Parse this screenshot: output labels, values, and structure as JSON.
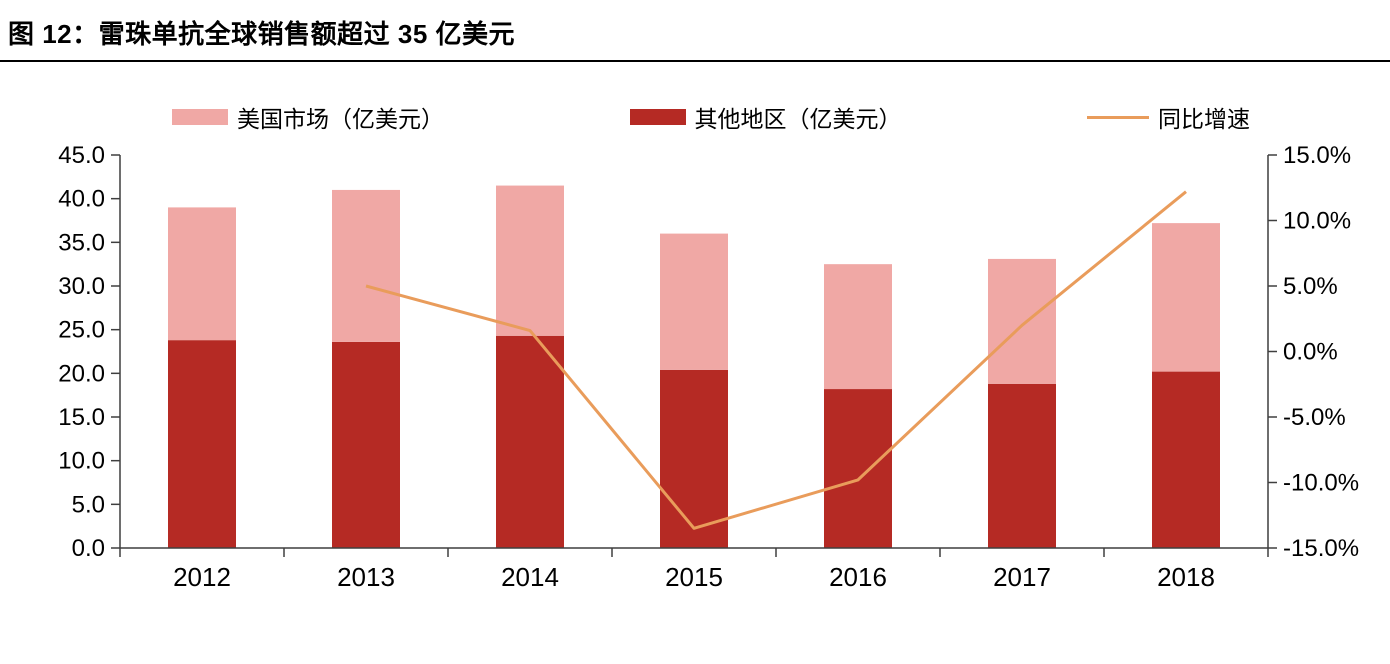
{
  "title": "图 12：雷珠单抗全球销售额超过 35 亿美元",
  "colors": {
    "us_market": "#f0a8a5",
    "other_region": "#b52a24",
    "growth_line": "#e99c5b",
    "axis": "#3f3f3f",
    "text": "#000000",
    "divider": "#000000"
  },
  "legend": {
    "items": [
      {
        "label": "美国市场（亿美元）",
        "type": "bar",
        "color_key": "us_market"
      },
      {
        "label": "其他地区（亿美元）",
        "type": "bar",
        "color_key": "other_region"
      },
      {
        "label": "同比增速",
        "type": "line",
        "color_key": "growth_line"
      }
    ]
  },
  "chart_data": {
    "type": "bar",
    "subtype": "stacked-bar-with-line-dual-axis",
    "title": "图 12：雷珠单抗全球销售额超过 35 亿美元",
    "categories": [
      "2012",
      "2013",
      "2014",
      "2015",
      "2016",
      "2017",
      "2018"
    ],
    "series": [
      {
        "name": "其他地区（亿美元）",
        "type": "bar",
        "axis": "left",
        "stack_order": 0,
        "color_key": "other_region",
        "values": [
          23.8,
          23.6,
          24.3,
          20.4,
          18.2,
          18.8,
          20.2
        ]
      },
      {
        "name": "美国市场（亿美元）",
        "type": "bar",
        "axis": "left",
        "stack_order": 1,
        "color_key": "us_market",
        "values": [
          15.2,
          17.4,
          17.2,
          15.6,
          14.3,
          14.3,
          17.0
        ]
      },
      {
        "name": "同比增速",
        "type": "line",
        "axis": "right",
        "color_key": "growth_line",
        "values": [
          null,
          5.0,
          1.6,
          -13.5,
          -9.8,
          2.0,
          12.2
        ]
      }
    ],
    "stacked_totals": [
      39.0,
      41.0,
      41.5,
      36.0,
      32.5,
      33.1,
      37.2
    ],
    "left_axis": {
      "min": 0,
      "max": 45,
      "step": 5,
      "labels": [
        "0.0",
        "5.0",
        "10.0",
        "15.0",
        "20.0",
        "25.0",
        "30.0",
        "35.0",
        "40.0",
        "45.0"
      ]
    },
    "right_axis": {
      "min": -15,
      "max": 15,
      "step": 5,
      "labels": [
        "-15.0%",
        "-10.0%",
        "-5.0%",
        "0.0%",
        "5.0%",
        "10.0%",
        "15.0%"
      ]
    },
    "grid": false,
    "legend_position": "top"
  }
}
